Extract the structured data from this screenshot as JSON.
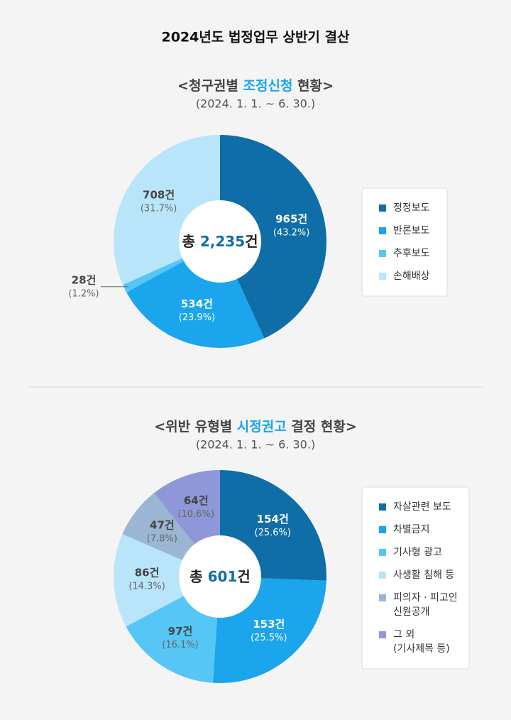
{
  "header": {
    "title": "2024년도 법정업무 상반기 결산"
  },
  "chart_data": [
    {
      "type": "donut",
      "title_prefix": "<청구권별 ",
      "title_highlight": "조정신청",
      "title_suffix": " 현황>",
      "subtitle": "(2024. 1. 1. ~ 6. 30.)",
      "center_prefix": "총 ",
      "center_total": {
        "value": 2235,
        "label": "2,235"
      },
      "center_unit": "건",
      "categories": [
        "정정보도",
        "반론보도",
        "추후보도",
        "손해배상"
      ],
      "values": [
        965,
        534,
        28,
        708
      ],
      "value_labels": [
        "965건",
        "534건",
        "28건",
        "708건"
      ],
      "percents": [
        43.2,
        23.9,
        1.2,
        31.7
      ],
      "percent_labels": [
        "(43.2%)",
        "(23.9%)",
        "(1.2%)",
        "(31.7%)"
      ],
      "colors": [
        "#0f6ea8",
        "#1aa5ec",
        "#55c6f5",
        "#b9e5fb"
      ]
    },
    {
      "type": "donut",
      "title_prefix": "<위반 유형별 ",
      "title_highlight": "시정권고",
      "title_suffix": " 결정 현황>",
      "subtitle": "(2024. 1. 1. ~ 6. 30.)",
      "center_prefix": "총 ",
      "center_total": {
        "value": 601,
        "label": "601"
      },
      "center_unit": "건",
      "categories": [
        "자살관련 보도",
        "차별금지",
        "기사형 광고",
        "사생활 침해 등",
        "피의자 · 피고인\n신원공개",
        "그 외\n(기사제목 등)"
      ],
      "values": [
        154,
        153,
        97,
        86,
        47,
        64
      ],
      "value_labels": [
        "154건",
        "153건",
        "97건",
        "86건",
        "47건",
        "64건"
      ],
      "percents": [
        25.6,
        25.5,
        16.1,
        14.3,
        7.8,
        10.6
      ],
      "percent_labels": [
        "(25.6%)",
        "(25.5%)",
        "(16.1%)",
        "(14.3%)",
        "(7.8%)",
        "(10.6%)"
      ],
      "colors": [
        "#0f6ea8",
        "#1aa5ec",
        "#55c6f5",
        "#b9e5fb",
        "#9bb6d3",
        "#8e98d8"
      ]
    }
  ]
}
